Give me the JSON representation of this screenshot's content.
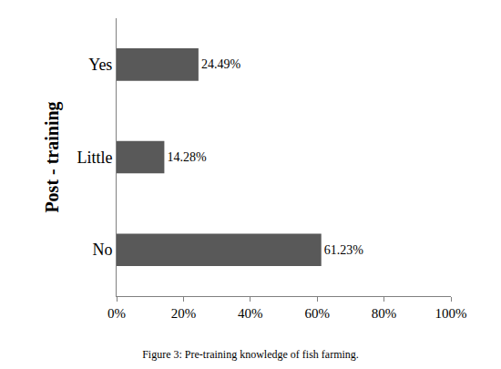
{
  "chart_data": {
    "type": "bar",
    "orientation": "horizontal",
    "title": "Figure 3: Pre-training knowledge of fish farming.",
    "y_label": "Post - training",
    "categories": [
      "Yes",
      "Little",
      "No"
    ],
    "values": [
      24.49,
      14.28,
      61.23
    ],
    "value_labels": [
      "24.49%",
      "14.28%",
      "61.23%"
    ],
    "data_labels": true,
    "color": "#595959",
    "xlim": [
      0,
      100
    ],
    "xticks": [
      {
        "value": 0,
        "label": "0%"
      },
      {
        "value": 20,
        "label": "20%"
      },
      {
        "value": 40,
        "label": "40%"
      },
      {
        "value": 60,
        "label": "60%"
      },
      {
        "value": 80,
        "label": "80%"
      },
      {
        "value": 100,
        "label": "100%"
      }
    ],
    "grid": false
  }
}
